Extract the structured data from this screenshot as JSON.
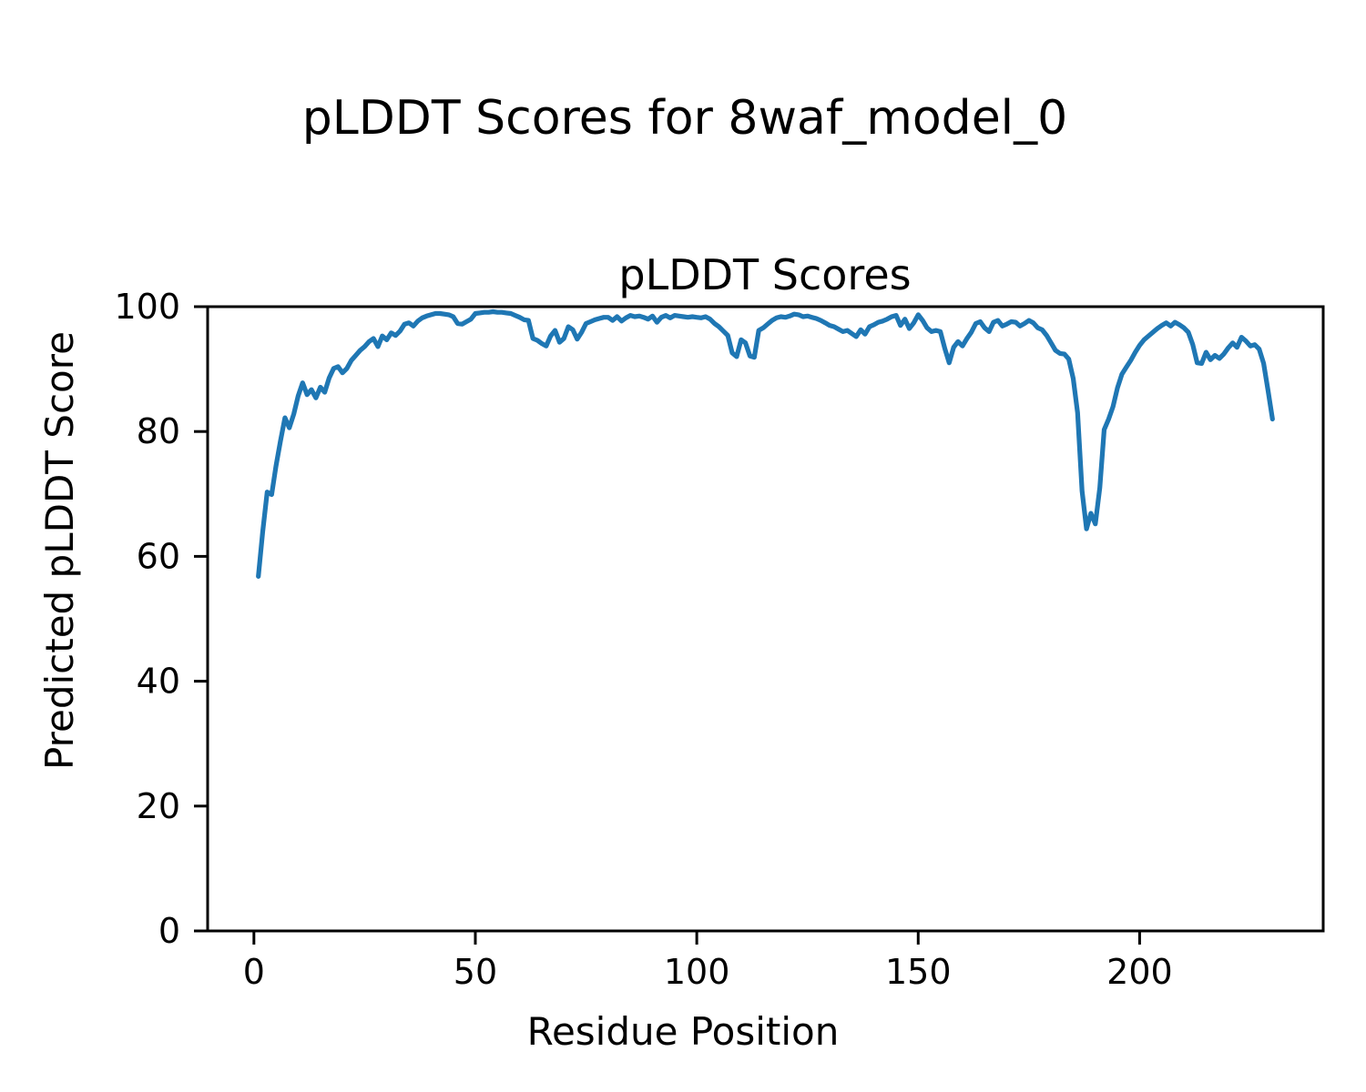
{
  "figure": {
    "suptitle": "pLDDT Scores for 8waf_model_0",
    "background_color": "#ffffff",
    "text_color": "#000000"
  },
  "chart_data": {
    "type": "line",
    "title": "pLDDT Scores",
    "xlabel": "Residue Position",
    "ylabel": "Predicted pLDDT Score",
    "grid": false,
    "legend": "none",
    "line_color": "#1f77b4",
    "spine_color": "#000000",
    "xlim": [
      -10.45,
      241.45
    ],
    "ylim": [
      0,
      100
    ],
    "x_ticks": [
      0,
      50,
      100,
      150,
      200
    ],
    "y_ticks": [
      0,
      20,
      40,
      60,
      80,
      100
    ],
    "x_tick_labels": [
      "0",
      "50",
      "100",
      "150",
      "200"
    ],
    "y_tick_labels": [
      "0",
      "20",
      "40",
      "60",
      "80",
      "100"
    ],
    "series": [
      {
        "name": "pLDDT",
        "x_start": 1,
        "x_step": 1,
        "x_end": 230,
        "values": [
          56.8,
          64.0,
          70.3,
          69.9,
          74.5,
          78.5,
          82.2,
          80.6,
          82.8,
          85.7,
          87.8,
          85.9,
          86.7,
          85.4,
          87.1,
          86.3,
          88.6,
          90.1,
          90.4,
          89.4,
          90.1,
          91.4,
          92.2,
          93.0,
          93.6,
          94.4,
          94.9,
          93.6,
          95.3,
          94.7,
          95.8,
          95.4,
          96.1,
          97.2,
          97.4,
          96.9,
          97.7,
          98.2,
          98.5,
          98.7,
          98.9,
          98.9,
          98.8,
          98.7,
          98.4,
          97.3,
          97.2,
          97.6,
          98.0,
          98.9,
          99.0,
          99.1,
          99.1,
          99.2,
          99.1,
          99.1,
          99.0,
          98.9,
          98.6,
          98.3,
          97.9,
          97.8,
          94.9,
          94.6,
          94.1,
          93.7,
          95.3,
          96.2,
          94.3,
          94.9,
          96.8,
          96.3,
          94.8,
          95.9,
          97.3,
          97.6,
          97.9,
          98.1,
          98.3,
          98.3,
          97.8,
          98.4,
          97.7,
          98.2,
          98.6,
          98.4,
          98.5,
          98.3,
          98.0,
          98.5,
          97.5,
          98.3,
          98.6,
          98.2,
          98.6,
          98.5,
          98.4,
          98.3,
          98.4,
          98.3,
          98.2,
          98.4,
          98.0,
          97.3,
          96.8,
          96.1,
          95.4,
          92.6,
          92.0,
          94.7,
          94.2,
          92.1,
          91.9,
          96.2,
          96.6,
          97.2,
          97.8,
          98.2,
          98.4,
          98.3,
          98.5,
          98.8,
          98.7,
          98.4,
          98.5,
          98.3,
          98.1,
          97.8,
          97.4,
          97.0,
          96.8,
          96.4,
          96.0,
          96.2,
          95.7,
          95.2,
          96.3,
          95.6,
          96.8,
          97.1,
          97.5,
          97.7,
          98.0,
          98.4,
          98.6,
          97.0,
          98.0,
          96.5,
          97.4,
          98.7,
          97.8,
          96.6,
          96.0,
          96.2,
          96.0,
          93.3,
          91.0,
          93.5,
          94.4,
          93.7,
          94.9,
          95.9,
          97.3,
          97.6,
          96.6,
          96.0,
          97.5,
          97.8,
          96.9,
          97.2,
          97.6,
          97.5,
          96.9,
          97.3,
          97.8,
          97.4,
          96.6,
          96.3,
          95.4,
          94.2,
          93.0,
          92.5,
          92.4,
          91.6,
          88.5,
          83.0,
          70.5,
          64.4,
          66.9,
          65.2,
          71.0,
          80.3,
          82.0,
          84.0,
          87.0,
          89.2,
          90.3,
          91.4,
          92.7,
          93.8,
          94.7,
          95.3,
          95.9,
          96.5,
          97.0,
          97.4,
          96.9,
          97.5,
          97.1,
          96.6,
          95.9,
          93.9,
          91.0,
          90.9,
          92.7,
          91.5,
          92.2,
          91.7,
          92.4,
          93.4,
          94.2,
          93.5,
          95.1,
          94.5,
          93.7,
          93.9,
          93.2,
          90.9,
          86.5,
          82.0
        ]
      }
    ]
  }
}
